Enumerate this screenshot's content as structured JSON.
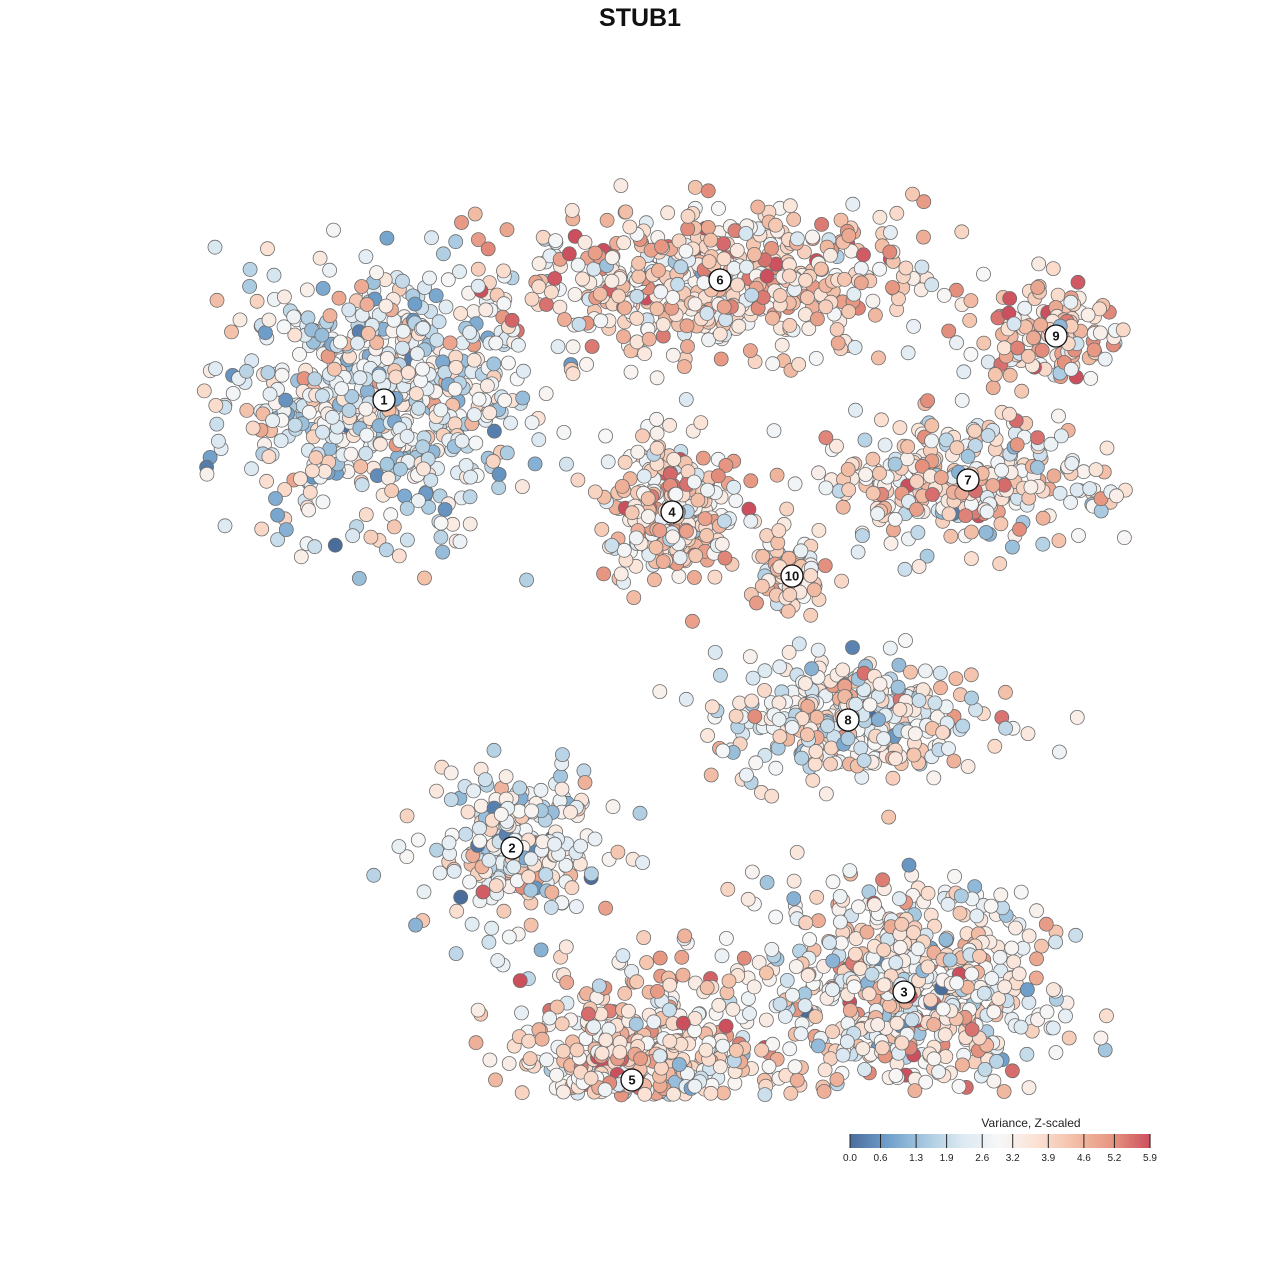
{
  "chart_data": {
    "type": "scatter",
    "title": "STUB1",
    "legend": {
      "title": "Variance, Z-scaled",
      "placement": "bottom-right",
      "min": 0.0,
      "max": 5.9,
      "ticks": [
        "0.0",
        "0.6",
        "1.3",
        "1.9",
        "2.6",
        "3.2",
        "3.9",
        "4.6",
        "5.2",
        "5.9"
      ],
      "tick_values": [
        0.0,
        0.6,
        1.3,
        1.9,
        2.6,
        3.2,
        3.9,
        4.6,
        5.2,
        5.9
      ],
      "colors": [
        "#4a6d9c",
        "#6f9fcb",
        "#a7c9e0",
        "#dce9f2",
        "#f7f7f7",
        "#fbe1d3",
        "#f3bea6",
        "#e69580",
        "#cc4f5e"
      ]
    },
    "grid": false,
    "axes_visible": false,
    "clusters": [
      {
        "label": "1",
        "x": -3.2,
        "y": 3.0,
        "spread": [
          2.0,
          1.7
        ],
        "n": 650,
        "mean": 2.6
      },
      {
        "label": "2",
        "x": -1.6,
        "y": -2.6,
        "spread": [
          1.1,
          0.9
        ],
        "n": 240,
        "mean": 2.9
      },
      {
        "label": "3",
        "x": 3.3,
        "y": -4.4,
        "spread": [
          1.8,
          1.4
        ],
        "n": 620,
        "mean": 3.3
      },
      {
        "label": "4",
        "x": 0.4,
        "y": 1.6,
        "spread": [
          0.8,
          0.9
        ],
        "n": 270,
        "mean": 3.7
      },
      {
        "label": "5",
        "x": -0.1,
        "y": -5.5,
        "spread": [
          1.6,
          1.3
        ],
        "n": 650,
        "mean": 3.7
      },
      {
        "label": "6",
        "x": 1.0,
        "y": 4.5,
        "spread": [
          2.5,
          0.9
        ],
        "n": 520,
        "mean": 3.8
      },
      {
        "label": "7",
        "x": 4.1,
        "y": 2.0,
        "spread": [
          2.0,
          0.8
        ],
        "n": 300,
        "mean": 3.4
      },
      {
        "label": "8",
        "x": 2.6,
        "y": -1.0,
        "spread": [
          1.6,
          0.8
        ],
        "n": 330,
        "mean": 3.0
      },
      {
        "label": "9",
        "x": 5.2,
        "y": 3.8,
        "spread": [
          0.9,
          0.7
        ],
        "n": 130,
        "mean": 4.0
      },
      {
        "label": "10",
        "x": 1.9,
        "y": 0.8,
        "spread": [
          0.5,
          0.5
        ],
        "n": 80,
        "mean": 3.4
      }
    ]
  }
}
